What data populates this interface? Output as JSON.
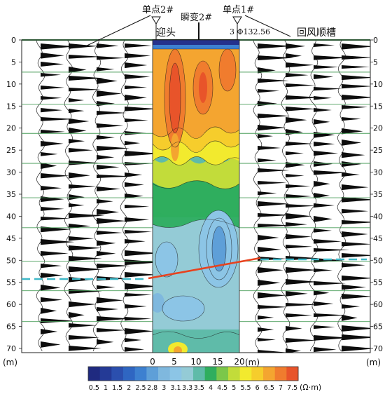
{
  "labels": {
    "single_point_2": "单点2#",
    "transient_2": "瞬变2#",
    "single_point_1": "单点1#",
    "heading": "迎头",
    "return_air": "回风顺槽",
    "borehole": "3 Φ132.56"
  },
  "depth_axis": {
    "unit": "(m)",
    "ticks": [
      "0",
      "5",
      "10",
      "15",
      "20",
      "25",
      "30",
      "35",
      "40",
      "45",
      "50",
      "55",
      "60",
      "65",
      "70"
    ]
  },
  "section_axis": {
    "unit": "(m)",
    "ticks": [
      "0",
      "5",
      "10",
      "15",
      "20"
    ]
  },
  "colorbar": {
    "values": [
      "0.5",
      "1",
      "1.5",
      "2",
      "2.5",
      "2.8",
      "3",
      "3.1",
      "3.3",
      "3.5",
      "4",
      "4.5",
      "5",
      "5.5",
      "6",
      "6.5",
      "7",
      "7.5"
    ],
    "unit": "(Ω·m)",
    "colors": [
      "#1f2a80",
      "#243a96",
      "#2b4fae",
      "#2f66c2",
      "#3d80d0",
      "#5e9fd8",
      "#7fb8de",
      "#8cc5e6",
      "#94cbd6",
      "#5fbba9",
      "#2fae5e",
      "#7bc74a",
      "#c2dc3a",
      "#f2ea2e",
      "#f6cd2c",
      "#f4a530",
      "#f07c2e",
      "#e8542a"
    ]
  }
}
